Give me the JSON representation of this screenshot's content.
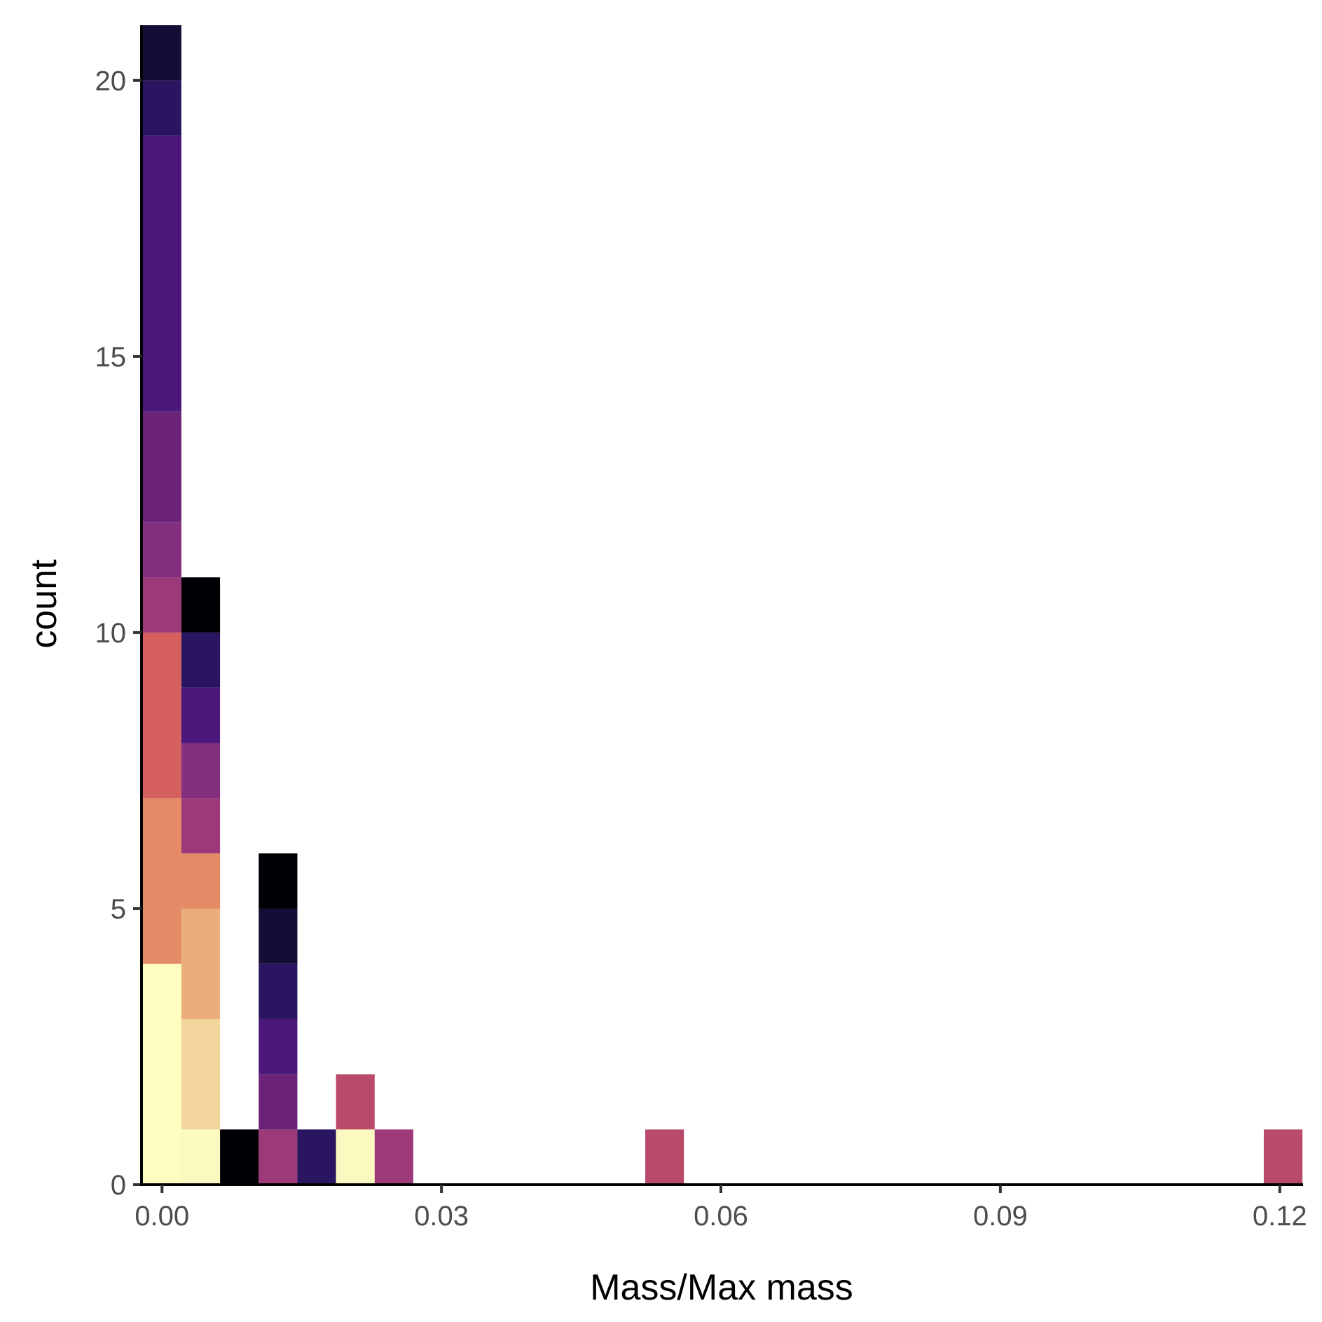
{
  "chart_data": {
    "type": "bar",
    "subtype": "stacked-histogram",
    "xlabel": "Mass/Max mass",
    "ylabel": "count",
    "xlim": [
      -0.0022,
      0.1225
    ],
    "ylim": [
      0,
      21
    ],
    "x_ticks": [
      0.0,
      0.03,
      0.06,
      0.09,
      0.12
    ],
    "x_tick_labels": [
      "0.00",
      "0.03",
      "0.06",
      "0.09",
      "0.12"
    ],
    "y_ticks": [
      0,
      5,
      10,
      15,
      20
    ],
    "y_tick_labels": [
      "0",
      "5",
      "10",
      "15",
      "20"
    ],
    "grid": false,
    "legend": "none",
    "bin_width": 0.00415,
    "palette": [
      "#000004",
      "#140e36",
      "#2a1163",
      "#4c117a",
      "#65187f",
      "#812581",
      "#9c2e7f",
      "#b73779",
      "#d3436e",
      "#e4725e",
      "#eb9f72",
      "#f2d49b",
      "#fcfdbf"
    ],
    "bins": [
      {
        "x_start": -0.00207,
        "x_end": 0.00208,
        "stack_top": 21,
        "segments": [
          {
            "count": 4,
            "color": "#fcfdbf"
          },
          {
            "count": 3,
            "color": "#e48a67"
          },
          {
            "count": 3,
            "color": "#d5605e"
          },
          {
            "count": 1,
            "color": "#9c3979"
          },
          {
            "count": 1,
            "color": "#842f7e"
          },
          {
            "count": 2,
            "color": "#6a2379"
          },
          {
            "count": 5,
            "color": "#4c177a"
          },
          {
            "count": 1,
            "color": "#2a1660"
          },
          {
            "count": 1,
            "color": "#140e36"
          }
        ]
      },
      {
        "x_start": 0.00208,
        "x_end": 0.00623,
        "stack_top": 11,
        "segments": [
          {
            "count": 1,
            "color": "#fcf9c0"
          },
          {
            "count": 2,
            "color": "#f3d69d"
          },
          {
            "count": 2,
            "color": "#ebae7b"
          },
          {
            "count": 1,
            "color": "#e48a67"
          },
          {
            "count": 1,
            "color": "#9c3979"
          },
          {
            "count": 1,
            "color": "#842f7e"
          },
          {
            "count": 1,
            "color": "#4c177a"
          },
          {
            "count": 1,
            "color": "#2a1660"
          },
          {
            "count": 1,
            "color": "#000004"
          }
        ]
      },
      {
        "x_start": 0.00623,
        "x_end": 0.01038,
        "stack_top": 1,
        "segments": [
          {
            "count": 1,
            "color": "#000004"
          }
        ]
      },
      {
        "x_start": 0.01038,
        "x_end": 0.01453,
        "stack_top": 6,
        "segments": [
          {
            "count": 1,
            "color": "#9c3979"
          },
          {
            "count": 1,
            "color": "#6a2379"
          },
          {
            "count": 1,
            "color": "#4c177a"
          },
          {
            "count": 1,
            "color": "#2a1660"
          },
          {
            "count": 1,
            "color": "#140e36"
          },
          {
            "count": 1,
            "color": "#000004"
          }
        ]
      },
      {
        "x_start": 0.01453,
        "x_end": 0.01868,
        "stack_top": 1,
        "segments": [
          {
            "count": 1,
            "color": "#2a1660"
          }
        ]
      },
      {
        "x_start": 0.01868,
        "x_end": 0.02283,
        "stack_top": 2,
        "segments": [
          {
            "count": 1,
            "color": "#fcf9c0"
          },
          {
            "count": 1,
            "color": "#b94a6a"
          }
        ]
      },
      {
        "x_start": 0.02283,
        "x_end": 0.02698,
        "stack_top": 1,
        "segments": [
          {
            "count": 1,
            "color": "#9c3979"
          }
        ]
      },
      {
        "x_start": 0.05188,
        "x_end": 0.05603,
        "stack_top": 1,
        "segments": [
          {
            "count": 1,
            "color": "#b94a6a"
          }
        ]
      },
      {
        "x_start": 0.11828,
        "x_end": 0.12243,
        "stack_top": 1,
        "segments": [
          {
            "count": 1,
            "color": "#b94a6a"
          }
        ]
      }
    ]
  }
}
